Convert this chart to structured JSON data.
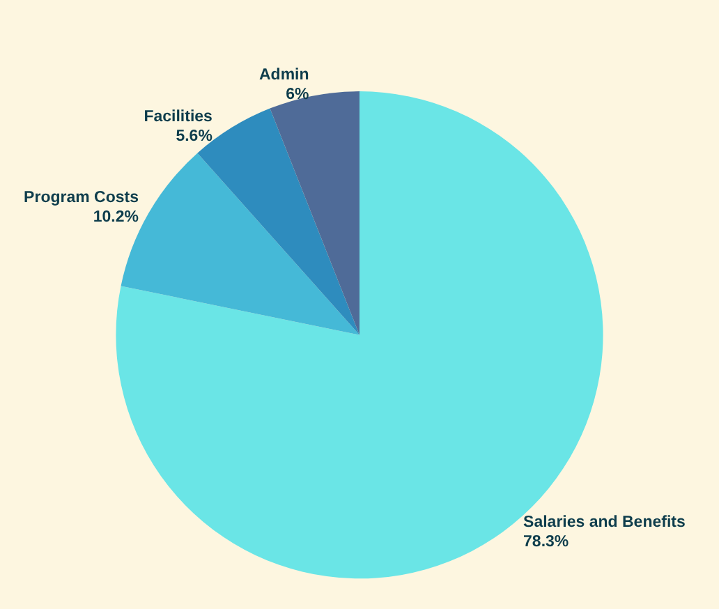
{
  "chart_data": {
    "type": "pie",
    "categories": [
      "Salaries and Benefits",
      "Program Costs",
      "Facilities",
      "Admin"
    ],
    "values": [
      78.3,
      10.2,
      5.6,
      6
    ],
    "value_labels": [
      "78.3%",
      "10.2%",
      "5.6%",
      "6%"
    ],
    "colors": [
      "#6ae5e6",
      "#45b9d7",
      "#2e8cbe",
      "#4f6b98"
    ],
    "legend": false
  }
}
